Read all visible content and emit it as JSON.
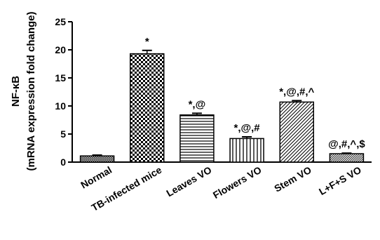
{
  "chart_data": {
    "type": "bar",
    "ylabel_line1": "NF-κB",
    "ylabel_line2": "(mRNA expression fold change)",
    "ylim": [
      0,
      25
    ],
    "yticks": [
      0,
      5,
      10,
      15,
      20,
      25
    ],
    "categories": [
      "Normal",
      "TB-infected mice",
      "Leaves VO",
      "Flowers VO",
      "Stem VO",
      "L+F+S VO"
    ],
    "values": [
      1.1,
      19.3,
      8.4,
      4.2,
      10.7,
      1.5
    ],
    "errors": [
      0.15,
      0.6,
      0.3,
      0.3,
      0.25,
      0.1
    ],
    "annotations": [
      "",
      "*",
      "*,@",
      "*,@,#",
      "*,@,#,^",
      "@,#,^,$"
    ],
    "patterns": [
      "crosshatch",
      "checker",
      "horizontal",
      "vertical",
      "diagonal",
      "diagonal-dense"
    ],
    "colors": {
      "bar_stroke": "#000000",
      "pattern": "#000000",
      "background": "#ffffff"
    }
  }
}
